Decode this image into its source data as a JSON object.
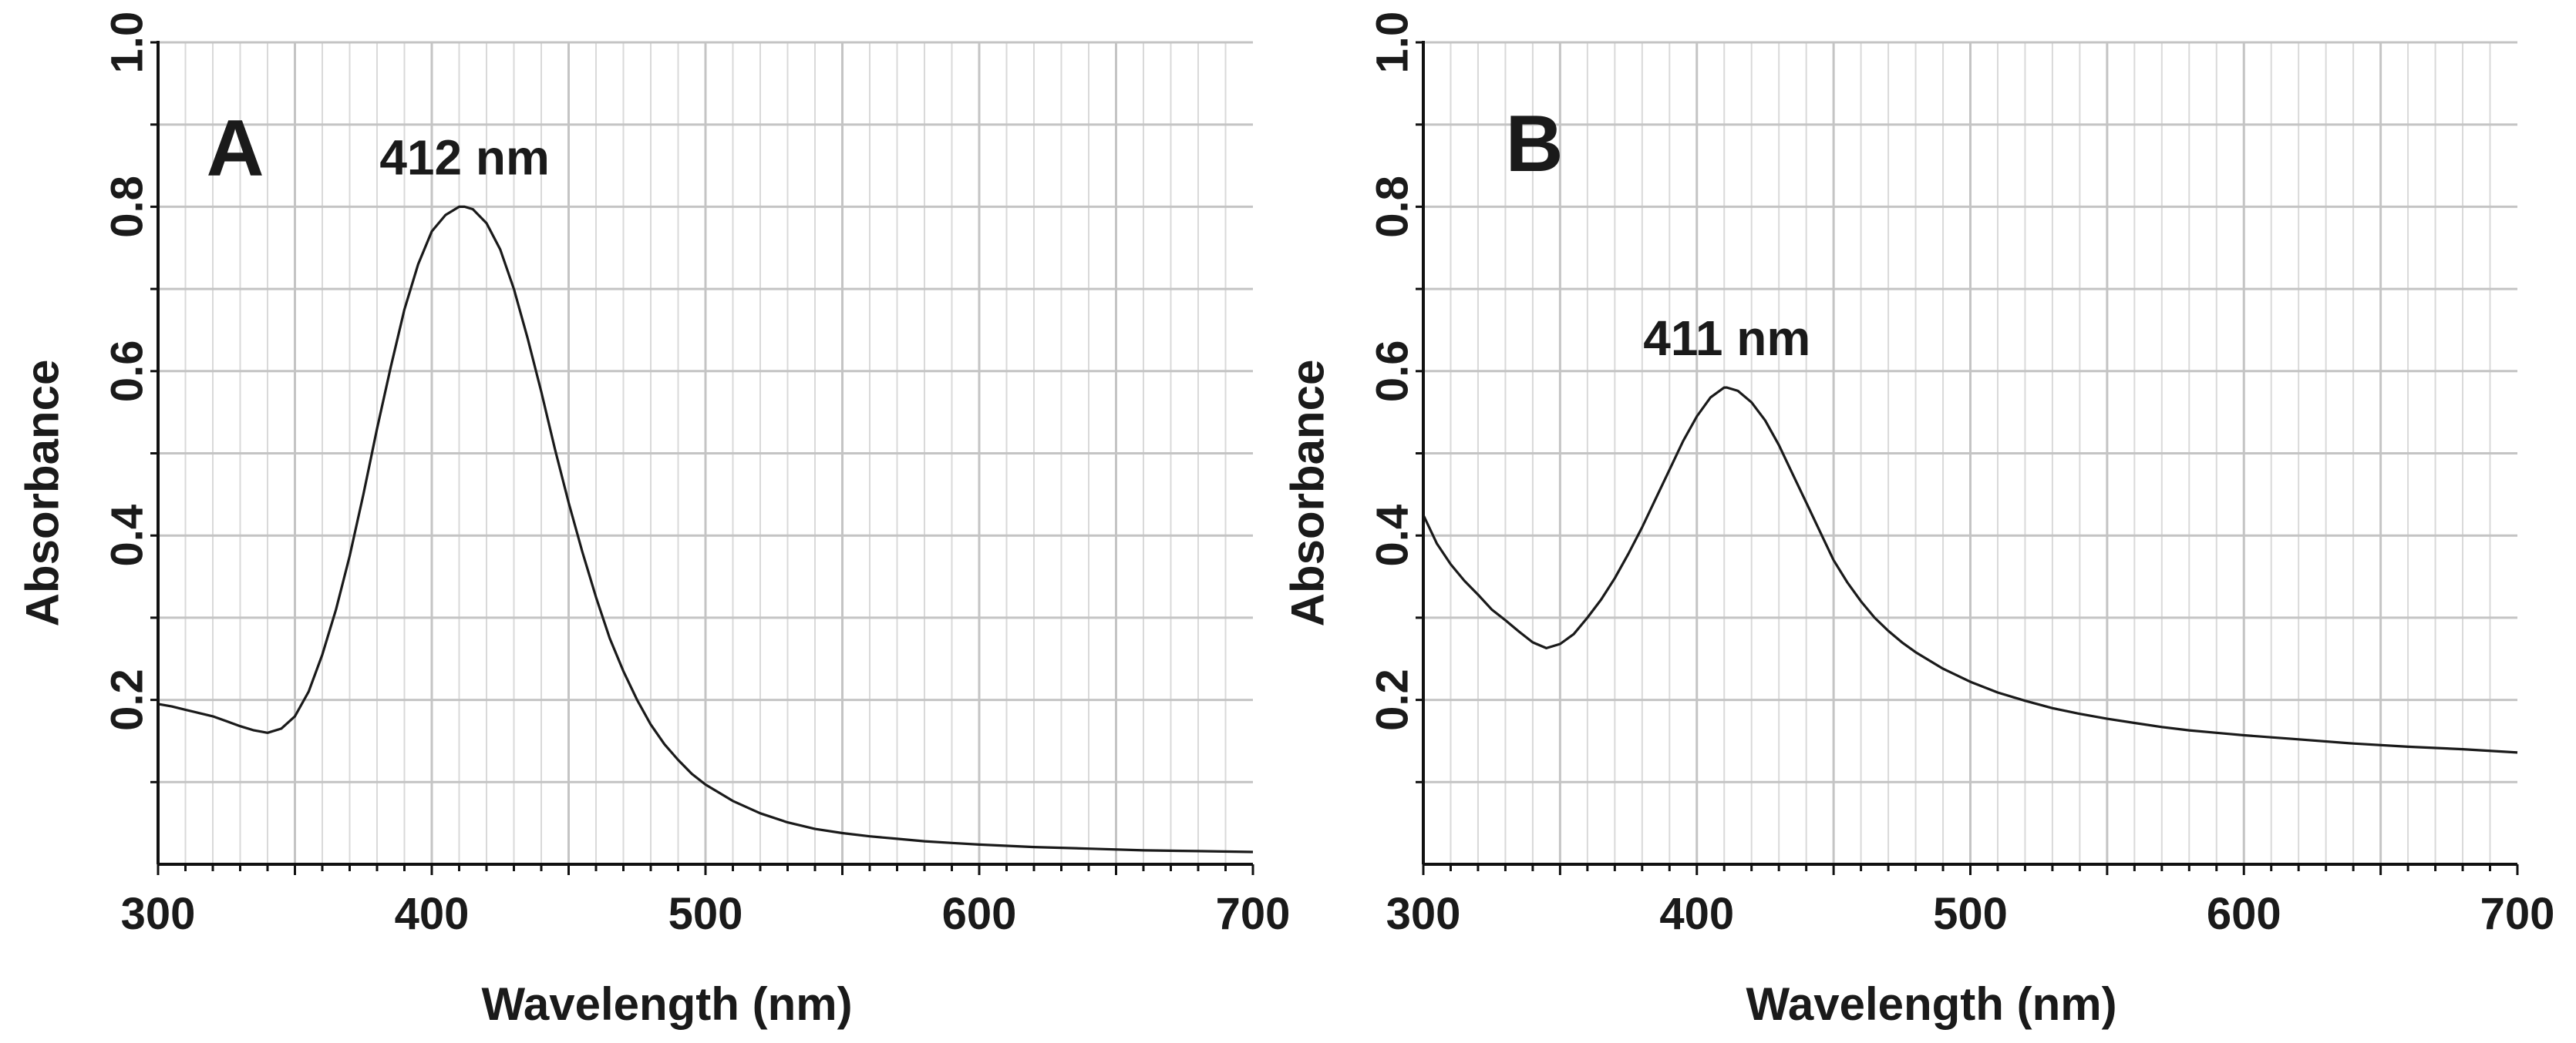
{
  "colors": {
    "grid": "#c4c4c4",
    "axis": "#111111",
    "line": "#1a1a1a",
    "background": "#ffffff"
  },
  "chart_data": [
    {
      "type": "line",
      "panel": "A",
      "xlabel": "Wavelength (nm)",
      "ylabel": "Absorbance",
      "xlim": [
        300,
        700
      ],
      "ylim": [
        0,
        1.0
      ],
      "xticks": [
        300,
        400,
        500,
        600,
        700
      ],
      "xtick_labels": [
        "300",
        "400",
        "500",
        "600",
        "700"
      ],
      "yticks": [
        0.2,
        0.4,
        0.6,
        0.8,
        1.0
      ],
      "ytick_labels": [
        "0.2",
        "0.4",
        "0.6",
        "0.8",
        "1.0"
      ],
      "grid": true,
      "annotation": {
        "text": "412 nm",
        "x": 412,
        "y": 0.8
      },
      "series": [
        {
          "name": "Absorbance",
          "x": [
            300,
            305,
            310,
            315,
            320,
            325,
            330,
            335,
            340,
            345,
            350,
            355,
            360,
            365,
            370,
            375,
            380,
            385,
            390,
            395,
            400,
            405,
            410,
            412,
            415,
            420,
            425,
            430,
            435,
            440,
            445,
            450,
            455,
            460,
            465,
            470,
            475,
            480,
            485,
            490,
            495,
            500,
            510,
            520,
            530,
            540,
            550,
            560,
            570,
            580,
            590,
            600,
            620,
            640,
            660,
            680,
            700
          ],
          "y": [
            0.195,
            0.192,
            0.188,
            0.184,
            0.18,
            0.174,
            0.168,
            0.163,
            0.16,
            0.165,
            0.18,
            0.21,
            0.255,
            0.31,
            0.375,
            0.45,
            0.53,
            0.605,
            0.675,
            0.73,
            0.77,
            0.79,
            0.8,
            0.8,
            0.797,
            0.78,
            0.748,
            0.7,
            0.64,
            0.575,
            0.505,
            0.44,
            0.38,
            0.325,
            0.275,
            0.235,
            0.2,
            0.17,
            0.146,
            0.127,
            0.11,
            0.097,
            0.077,
            0.062,
            0.051,
            0.043,
            0.038,
            0.034,
            0.031,
            0.028,
            0.026,
            0.024,
            0.021,
            0.019,
            0.017,
            0.016,
            0.015
          ]
        }
      ]
    },
    {
      "type": "line",
      "panel": "B",
      "xlabel": "Wavelength (nm)",
      "ylabel": "Absorbance",
      "xlim": [
        300,
        700
      ],
      "ylim": [
        0,
        1.0
      ],
      "xticks": [
        300,
        400,
        500,
        600,
        700
      ],
      "xtick_labels": [
        "300",
        "400",
        "500",
        "600",
        "700"
      ],
      "yticks": [
        0.2,
        0.4,
        0.6,
        0.8,
        1.0
      ],
      "ytick_labels": [
        "0.2",
        "0.4",
        "0.6",
        "0.8",
        "1.0"
      ],
      "grid": true,
      "annotation": {
        "text": "411 nm",
        "x": 411,
        "y": 0.58
      },
      "series": [
        {
          "name": "Absorbance",
          "x": [
            300,
            305,
            310,
            315,
            320,
            325,
            330,
            335,
            340,
            345,
            350,
            355,
            360,
            365,
            370,
            375,
            380,
            385,
            390,
            395,
            400,
            405,
            410,
            411,
            415,
            420,
            425,
            430,
            435,
            440,
            445,
            450,
            455,
            460,
            465,
            470,
            475,
            480,
            490,
            500,
            510,
            520,
            530,
            540,
            550,
            560,
            570,
            580,
            590,
            600,
            620,
            640,
            660,
            680,
            700
          ],
          "y": [
            0.425,
            0.39,
            0.365,
            0.345,
            0.328,
            0.31,
            0.297,
            0.283,
            0.27,
            0.263,
            0.268,
            0.28,
            0.3,
            0.322,
            0.348,
            0.378,
            0.41,
            0.445,
            0.48,
            0.515,
            0.545,
            0.568,
            0.58,
            0.58,
            0.576,
            0.562,
            0.54,
            0.51,
            0.475,
            0.44,
            0.405,
            0.37,
            0.343,
            0.32,
            0.3,
            0.284,
            0.27,
            0.258,
            0.238,
            0.222,
            0.209,
            0.199,
            0.19,
            0.183,
            0.177,
            0.172,
            0.167,
            0.163,
            0.16,
            0.157,
            0.152,
            0.147,
            0.143,
            0.14,
            0.136
          ]
        }
      ]
    }
  ]
}
